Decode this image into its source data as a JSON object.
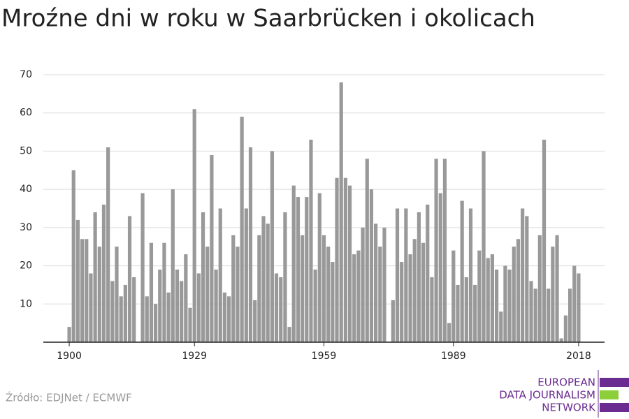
{
  "chart_data": {
    "type": "bar",
    "title": "Mroźne dni w roku w Saarbrücken i okolicach",
    "source": "Źródło: EDJNet / ECMWF",
    "logo": [
      "EUROPEAN",
      "DATA JOURNALISM",
      "NETWORK"
    ],
    "color": "#999999",
    "grid": true,
    "x": [
      1900,
      1901,
      1902,
      1903,
      1904,
      1905,
      1906,
      1907,
      1908,
      1909,
      1910,
      1911,
      1912,
      1913,
      1914,
      1915,
      1916,
      1917,
      1918,
      1919,
      1920,
      1921,
      1922,
      1923,
      1924,
      1925,
      1926,
      1927,
      1928,
      1929,
      1930,
      1931,
      1932,
      1933,
      1934,
      1935,
      1936,
      1937,
      1938,
      1939,
      1940,
      1941,
      1942,
      1943,
      1944,
      1945,
      1946,
      1947,
      1948,
      1949,
      1950,
      1951,
      1952,
      1953,
      1954,
      1955,
      1956,
      1957,
      1958,
      1959,
      1960,
      1961,
      1962,
      1963,
      1964,
      1965,
      1966,
      1967,
      1968,
      1969,
      1970,
      1971,
      1972,
      1973,
      1974,
      1975,
      1976,
      1977,
      1978,
      1979,
      1980,
      1981,
      1982,
      1983,
      1984,
      1985,
      1986,
      1987,
      1988,
      1989,
      1990,
      1991,
      1992,
      1993,
      1994,
      1995,
      1996,
      1997,
      1998,
      1999,
      2000,
      2001,
      2002,
      2003,
      2004,
      2005,
      2006,
      2007,
      2008,
      2009,
      2010,
      2011,
      2012,
      2013,
      2014,
      2015,
      2016,
      2017,
      2018
    ],
    "values": [
      4,
      45,
      32,
      27,
      27,
      18,
      34,
      25,
      36,
      51,
      16,
      25,
      12,
      15,
      33,
      17,
      null,
      39,
      12,
      26,
      10,
      19,
      26,
      13,
      40,
      19,
      16,
      23,
      9,
      61,
      18,
      34,
      25,
      49,
      19,
      35,
      13,
      12,
      28,
      25,
      59,
      35,
      51,
      11,
      28,
      33,
      31,
      50,
      18,
      17,
      34,
      4,
      41,
      38,
      28,
      38,
      53,
      19,
      39,
      28,
      25,
      21,
      43,
      68,
      43,
      41,
      23,
      24,
      30,
      48,
      40,
      31,
      25,
      30,
      null,
      11,
      35,
      21,
      35,
      23,
      27,
      34,
      26,
      36,
      17,
      48,
      39,
      48,
      5,
      24,
      15,
      37,
      17,
      35,
      15,
      24,
      50,
      22,
      23,
      19,
      8,
      20,
      19,
      25,
      27,
      35,
      33,
      16,
      14,
      28,
      53,
      14,
      25,
      28,
      1,
      7,
      14,
      20,
      18
    ],
    "xlim": [
      1894,
      2024
    ],
    "xticks": [
      1900,
      1929,
      1959,
      1989,
      2018
    ],
    "ylim": [
      0,
      70
    ],
    "yticks": [
      10,
      20,
      30,
      40,
      50,
      60,
      70
    ]
  }
}
